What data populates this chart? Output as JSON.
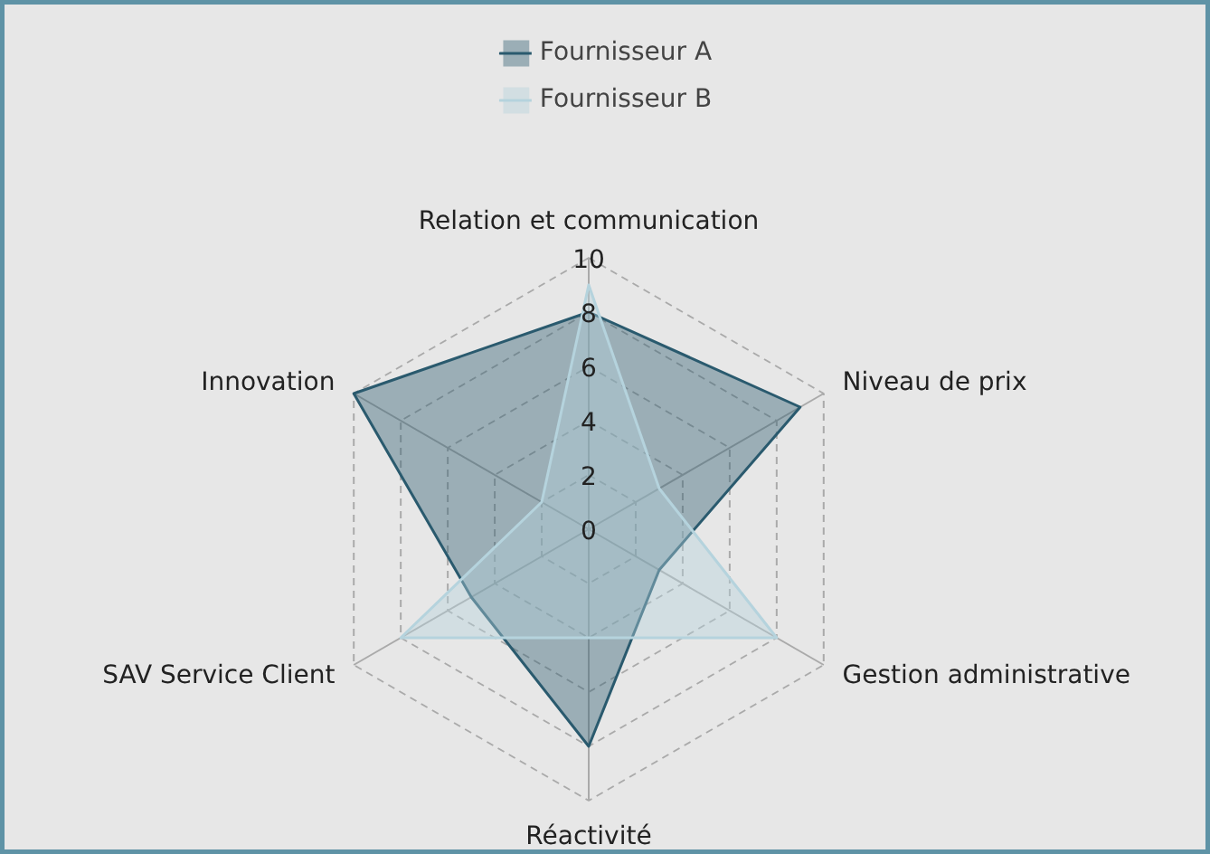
{
  "chart_data": {
    "type": "radar",
    "categories": [
      "Relation et communication",
      "Niveau de prix",
      "Gestion administrative",
      "Réactivité",
      "SAV Service Client",
      "Innovation"
    ],
    "series": [
      {
        "name": "Fournisseur A",
        "color": "#2a5a6e",
        "values": [
          8,
          9,
          3,
          8,
          5,
          10
        ]
      },
      {
        "name": "Fournisseur B",
        "color": "#b5d3dd",
        "values": [
          9,
          3,
          8,
          4,
          8,
          2
        ]
      }
    ],
    "ylim": [
      0,
      10
    ],
    "yticks": [
      0,
      2,
      4,
      6,
      8,
      10
    ],
    "grid": true,
    "legend": "top"
  }
}
